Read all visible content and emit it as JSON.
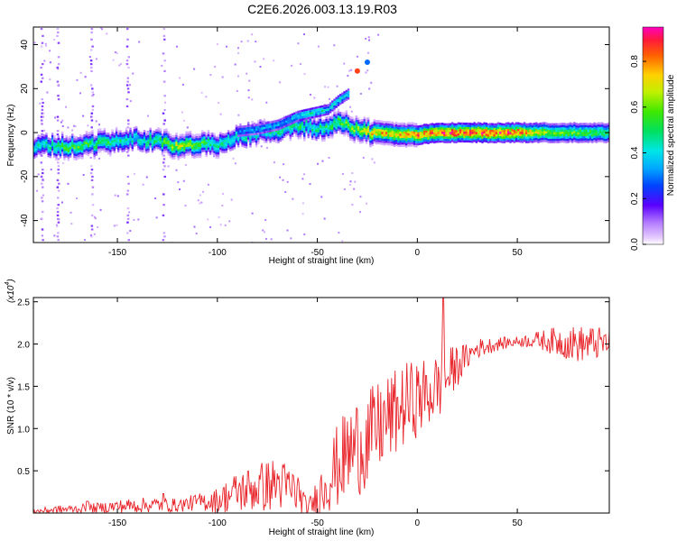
{
  "figure_title": "C2E6.2026.003.13.19.R03",
  "chart_data": [
    {
      "type": "heatmap",
      "title": "C2E6.2026.003.13.19.R03",
      "xlabel": "Height of straight line (km)",
      "ylabel": "Frequency (Hz)",
      "xlim": [
        -192,
        96
      ],
      "ylim": [
        -50,
        48
      ],
      "xticks": [
        -150,
        -100,
        -50,
        0,
        50
      ],
      "yticks": [
        -40,
        -20,
        0,
        20,
        40
      ],
      "colorbar": {
        "label": "Normalized spectral amplitude",
        "range": [
          0.0,
          0.95
        ],
        "ticks": [
          0.0,
          0.2,
          0.4,
          0.6,
          0.8
        ],
        "tick_labels": [
          "0.0",
          "0.2",
          "0.4",
          "0.6",
          "0.8"
        ]
      },
      "ridge": {
        "x": [
          -190,
          -175,
          -160,
          -150,
          -140,
          -130,
          -120,
          -110,
          -100,
          -90,
          -80,
          -70,
          -60,
          -55,
          -50,
          -45,
          -40,
          -35,
          -30,
          -25,
          -20,
          -10,
          0,
          10,
          20,
          30,
          40,
          50,
          60,
          70,
          80,
          90,
          96
        ],
        "y": [
          -6,
          -6,
          -5,
          -3,
          -3,
          -4,
          -6,
          -6,
          -5,
          -2,
          0,
          1,
          3,
          3,
          1,
          3,
          5,
          3,
          1,
          0,
          0,
          -1,
          -1,
          0,
          0,
          0,
          0,
          0,
          0,
          0,
          0,
          0,
          0
        ],
        "amplitude": [
          0.45,
          0.6,
          0.55,
          0.5,
          0.45,
          0.55,
          0.7,
          0.6,
          0.5,
          0.45,
          0.5,
          0.5,
          0.55,
          0.5,
          0.5,
          0.55,
          0.6,
          0.6,
          0.7,
          0.75,
          0.8,
          0.8,
          0.85,
          0.9,
          0.9,
          0.9,
          0.88,
          0.88,
          0.7,
          0.6,
          0.6,
          0.55,
          0.55
        ]
      },
      "upper_branch": {
        "x": [
          -90,
          -80,
          -70,
          -60,
          -55,
          -50,
          -45,
          -40,
          -35
        ],
        "y": [
          1,
          2,
          4,
          8,
          9,
          10,
          11,
          15,
          18
        ],
        "amplitude": [
          0.35,
          0.4,
          0.4,
          0.45,
          0.5,
          0.5,
          0.45,
          0.5,
          0.45
        ]
      },
      "isolated_points": [
        {
          "x": -30,
          "y": 28,
          "amplitude": 0.9
        },
        {
          "x": -25,
          "y": 32,
          "amplitude": 0.3
        }
      ],
      "noise_columns_x": [
        -188,
        -180,
        -163,
        -145,
        -127
      ]
    },
    {
      "type": "line",
      "title": "",
      "xlabel": "Height of straight line (km)",
      "ylabel": "SNR (10 * v/v)",
      "scale_label": "(x10",
      "scale_exponent": "4",
      "scale_close": ")",
      "xlim": [
        -192,
        96
      ],
      "ylim": [
        0,
        25500
      ],
      "xticks": [
        -150,
        -100,
        -50,
        0,
        50
      ],
      "yticks": [
        5000,
        10000,
        15000,
        20000,
        25000
      ],
      "ytick_labels": [
        "0.5",
        "1.0",
        "1.5",
        "2.0",
        "2.5"
      ],
      "color": "#e8242a",
      "series": [
        {
          "name": "SNR",
          "x": [
            -192,
            -180,
            -170,
            -160,
            -150,
            -140,
            -130,
            -120,
            -110,
            -100,
            -90,
            -80,
            -70,
            -60,
            -55,
            -50,
            -45,
            -40,
            -35,
            -30,
            -25,
            -20,
            -15,
            -10,
            -5,
            0,
            5,
            10,
            13,
            15,
            20,
            25,
            30,
            40,
            50,
            60,
            70,
            80,
            90,
            96
          ],
          "y": [
            200,
            400,
            500,
            600,
            800,
            900,
            1000,
            900,
            1300,
            1500,
            2500,
            3000,
            3500,
            2500,
            500,
            1800,
            4000,
            5500,
            7000,
            8000,
            8500,
            10000,
            11000,
            12000,
            13000,
            13500,
            14000,
            15000,
            15500,
            16000,
            17500,
            18500,
            19500,
            20000,
            20300,
            20500,
            20300,
            20000,
            20100,
            20100
          ],
          "noise_amp": [
            300,
            500,
            500,
            600,
            800,
            900,
            900,
            800,
            1000,
            1500,
            2500,
            3000,
            3200,
            2800,
            700,
            2500,
            4000,
            5000,
            5500,
            6000,
            6000,
            5500,
            5500,
            5000,
            5000,
            4500,
            4500,
            4000,
            4000,
            3500,
            2500,
            1500,
            1200,
            800,
            600,
            1000,
            1800,
            2200,
            2000,
            1500
          ]
        }
      ],
      "spikes": [
        {
          "x": -165,
          "y": 1400
        },
        {
          "x": -127,
          "y": 2300
        },
        {
          "x": 13,
          "y": 25500
        }
      ]
    }
  ]
}
